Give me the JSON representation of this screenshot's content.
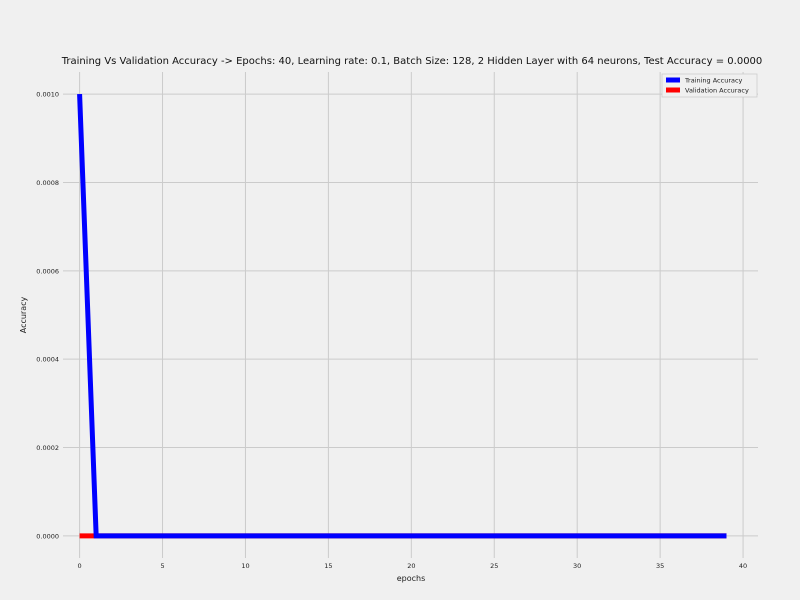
{
  "chart_data": {
    "type": "line",
    "title": "Training Vs Validation Accuracy -> Epochs: 40, Learning rate: 0.1, Batch Size: 128, 2 Hidden Layer with 64 neurons, Test Accuracy = 0.0000",
    "xlabel": "epochs",
    "ylabel": "Accuracy",
    "xlim": [
      -1,
      40.9
    ],
    "ylim": [
      -5e-05,
      0.00105
    ],
    "x_ticks": [
      0,
      5,
      10,
      15,
      20,
      25,
      30,
      35,
      40
    ],
    "x_tick_labels": [
      "0",
      "5",
      "10",
      "15",
      "20",
      "25",
      "30",
      "35",
      "40"
    ],
    "y_ticks": [
      0,
      0.0002,
      0.0004,
      0.0006,
      0.0008,
      0.001
    ],
    "y_tick_labels": [
      "0.0000",
      "0.0002",
      "0.0004",
      "0.0006",
      "0.0008",
      "0.0010"
    ],
    "grid": true,
    "legend_position": "top-right",
    "series": [
      {
        "name": "Training Accuracy",
        "color": "#0000ff",
        "x": [
          0,
          1,
          2,
          3,
          4,
          5,
          6,
          7,
          8,
          9,
          10,
          11,
          12,
          13,
          14,
          15,
          16,
          17,
          18,
          19,
          20,
          21,
          22,
          23,
          24,
          25,
          26,
          27,
          28,
          29,
          30,
          31,
          32,
          33,
          34,
          35,
          36,
          37,
          38,
          39
        ],
        "y": [
          0.001,
          0,
          0,
          0,
          0,
          0,
          0,
          0,
          0,
          0,
          0,
          0,
          0,
          0,
          0,
          0,
          0,
          0,
          0,
          0,
          0,
          0,
          0,
          0,
          0,
          0,
          0,
          0,
          0,
          0,
          0,
          0,
          0,
          0,
          0,
          0,
          0,
          0,
          0,
          0
        ]
      },
      {
        "name": "Validation Accuracy",
        "color": "#ff0000",
        "x": [
          0,
          1,
          2,
          3,
          4,
          5,
          6,
          7,
          8,
          9,
          10,
          11,
          12,
          13,
          14,
          15,
          16,
          17,
          18,
          19,
          20,
          21,
          22,
          23,
          24,
          25,
          26,
          27,
          28,
          29,
          30,
          31,
          32,
          33,
          34,
          35,
          36,
          37,
          38,
          39
        ],
        "y": [
          0,
          0,
          0,
          0,
          0,
          0,
          0,
          0,
          0,
          0,
          0,
          0,
          0,
          0,
          0,
          0,
          0,
          0,
          0,
          0,
          0,
          0,
          0,
          0,
          0,
          0,
          0,
          0,
          0,
          0,
          0,
          0,
          0,
          0,
          0,
          0,
          0,
          0,
          0,
          0
        ]
      }
    ]
  }
}
